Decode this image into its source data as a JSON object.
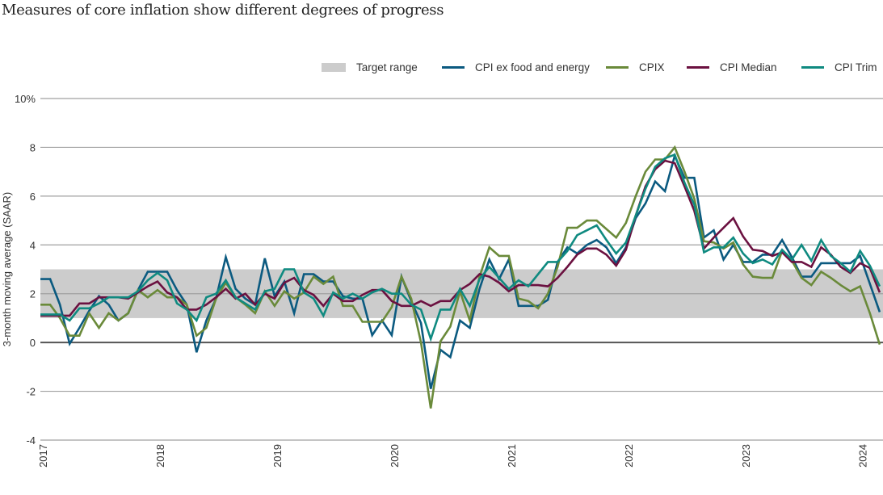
{
  "title": "Measures of core inflation show different degrees of progress",
  "legend": {
    "target": "Target range",
    "core": "CPI ex food and energy",
    "cpix": "CPIX",
    "median": "CPI Median",
    "trim": "CPI Trim"
  },
  "colors": {
    "target": "#cccccc",
    "core": "#0b5a80",
    "cpix": "#6a8a3a",
    "median": "#6b1140",
    "trim": "#0f8a80",
    "grid": "#a0a0a0",
    "zero": "#555555"
  },
  "chart_data": {
    "type": "line",
    "title": "Measures of core inflation show different degrees of progress",
    "ylabel": "3-month moving average (SAAR)",
    "ylim": [
      -4,
      10
    ],
    "yticks": [
      {
        "v": 10,
        "label": "10%"
      },
      {
        "v": 8,
        "label": "8"
      },
      {
        "v": 6,
        "label": "6"
      },
      {
        "v": 4,
        "label": "4"
      },
      {
        "v": 2,
        "label": "2"
      },
      {
        "v": 0,
        "label": "0"
      },
      {
        "v": -2,
        "label": "-2"
      },
      {
        "v": -4,
        "label": "-4"
      }
    ],
    "xticks": [
      "2017",
      "2018",
      "2019",
      "2020",
      "2021",
      "2022",
      "2023",
      "2024"
    ],
    "x_start": "2017-01",
    "x_end": "2024-03",
    "frequency": "monthly",
    "grid": true,
    "legend_position": "top-right",
    "target_range": [
      1,
      3
    ],
    "series": [
      {
        "key": "core",
        "name": "CPI ex food and energy",
        "values": [
          2.6,
          2.6,
          1.55,
          -0.05,
          0.6,
          1.3,
          1.9,
          1.55,
          0.9,
          1.2,
          2.15,
          2.9,
          2.9,
          2.9,
          2.15,
          1.55,
          -0.4,
          0.9,
          1.8,
          3.5,
          2.2,
          1.8,
          1.55,
          3.45,
          1.9,
          2.5,
          1.2,
          2.8,
          2.8,
          2.5,
          2.5,
          1.9,
          1.8,
          1.8,
          0.3,
          0.9,
          0.3,
          2.7,
          1.7,
          0.8,
          -1.9,
          -0.3,
          -0.6,
          0.9,
          0.6,
          2.2,
          3.4,
          2.6,
          3.4,
          1.5,
          1.5,
          1.5,
          1.75,
          3.3,
          3.9,
          3.65,
          4.0,
          4.2,
          3.9,
          3.25,
          3.9,
          5.1,
          5.7,
          6.6,
          6.2,
          7.65,
          6.75,
          6.75,
          4.3,
          4.6,
          3.4,
          4.0,
          3.3,
          3.3,
          3.6,
          3.6,
          4.2,
          3.5,
          2.7,
          2.7,
          3.25,
          3.25,
          3.25,
          3.25,
          3.55,
          2.4,
          1.25
        ]
      },
      {
        "key": "cpix",
        "name": "CPIX",
        "values": [
          1.55,
          1.55,
          1.0,
          0.28,
          0.28,
          1.2,
          0.6,
          1.2,
          0.9,
          1.2,
          2.15,
          1.85,
          2.15,
          1.85,
          1.85,
          1.55,
          0.28,
          0.6,
          1.8,
          2.45,
          1.85,
          1.55,
          1.2,
          2.1,
          1.5,
          2.1,
          1.8,
          2.05,
          2.7,
          2.4,
          2.7,
          1.5,
          1.5,
          0.85,
          0.85,
          0.85,
          1.45,
          2.7,
          1.8,
          0.0,
          -2.7,
          0.05,
          0.65,
          2.1,
          0.9,
          2.7,
          3.9,
          3.55,
          3.55,
          1.8,
          1.7,
          1.4,
          2.0,
          3.1,
          4.7,
          4.7,
          5.0,
          5.0,
          4.65,
          4.3,
          4.9,
          6.0,
          7.0,
          7.5,
          7.5,
          8.0,
          7.0,
          5.9,
          4.15,
          4.1,
          3.85,
          4.1,
          3.2,
          2.7,
          2.65,
          2.65,
          3.75,
          3.35,
          2.65,
          2.35,
          2.9,
          2.65,
          2.35,
          2.1,
          2.3,
          1.2,
          -0.08
        ]
      },
      {
        "key": "median",
        "name": "CPI Median",
        "values": [
          1.1,
          1.1,
          1.1,
          1.1,
          1.6,
          1.6,
          1.85,
          1.85,
          1.85,
          1.8,
          2.05,
          2.3,
          2.5,
          2.05,
          1.85,
          1.35,
          1.35,
          1.55,
          1.85,
          2.2,
          1.8,
          2.0,
          1.55,
          2.0,
          1.8,
          2.45,
          2.65,
          2.15,
          1.95,
          1.5,
          2.0,
          1.7,
          1.7,
          1.95,
          2.15,
          2.15,
          1.7,
          1.5,
          1.5,
          1.7,
          1.5,
          1.7,
          1.7,
          2.15,
          2.4,
          2.8,
          2.7,
          2.45,
          2.1,
          2.35,
          2.35,
          2.35,
          2.3,
          2.65,
          3.1,
          3.6,
          3.85,
          3.85,
          3.6,
          3.15,
          3.8,
          5.2,
          6.4,
          7.1,
          7.45,
          7.35,
          6.4,
          5.4,
          3.85,
          4.3,
          4.7,
          5.1,
          4.35,
          3.8,
          3.75,
          3.55,
          3.7,
          3.3,
          3.3,
          3.1,
          3.9,
          3.6,
          3.1,
          2.85,
          3.25,
          3.05,
          2.05
        ]
      },
      {
        "key": "trim",
        "name": "CPI Trim",
        "values": [
          1.15,
          1.15,
          1.15,
          0.9,
          1.4,
          1.4,
          1.6,
          1.85,
          1.85,
          1.85,
          2.1,
          2.55,
          2.85,
          2.55,
          1.6,
          1.35,
          0.9,
          1.85,
          2.0,
          2.55,
          1.85,
          1.6,
          1.35,
          2.1,
          2.2,
          3.0,
          3.0,
          2.05,
          1.8,
          1.1,
          2.05,
          1.8,
          2.0,
          1.8,
          2.05,
          2.2,
          2.0,
          2.0,
          1.55,
          1.35,
          0.15,
          1.35,
          1.35,
          2.2,
          1.5,
          2.6,
          3.1,
          2.65,
          2.2,
          2.55,
          2.3,
          2.8,
          3.3,
          3.3,
          3.75,
          4.4,
          4.6,
          4.8,
          4.2,
          3.65,
          4.1,
          5.2,
          6.3,
          7.2,
          7.55,
          7.7,
          6.55,
          5.65,
          3.7,
          3.9,
          3.9,
          4.3,
          3.65,
          3.25,
          3.4,
          3.2,
          3.8,
          3.4,
          4.0,
          3.35,
          4.2,
          3.55,
          3.25,
          2.9,
          3.75,
          3.15,
          2.3
        ]
      }
    ]
  }
}
